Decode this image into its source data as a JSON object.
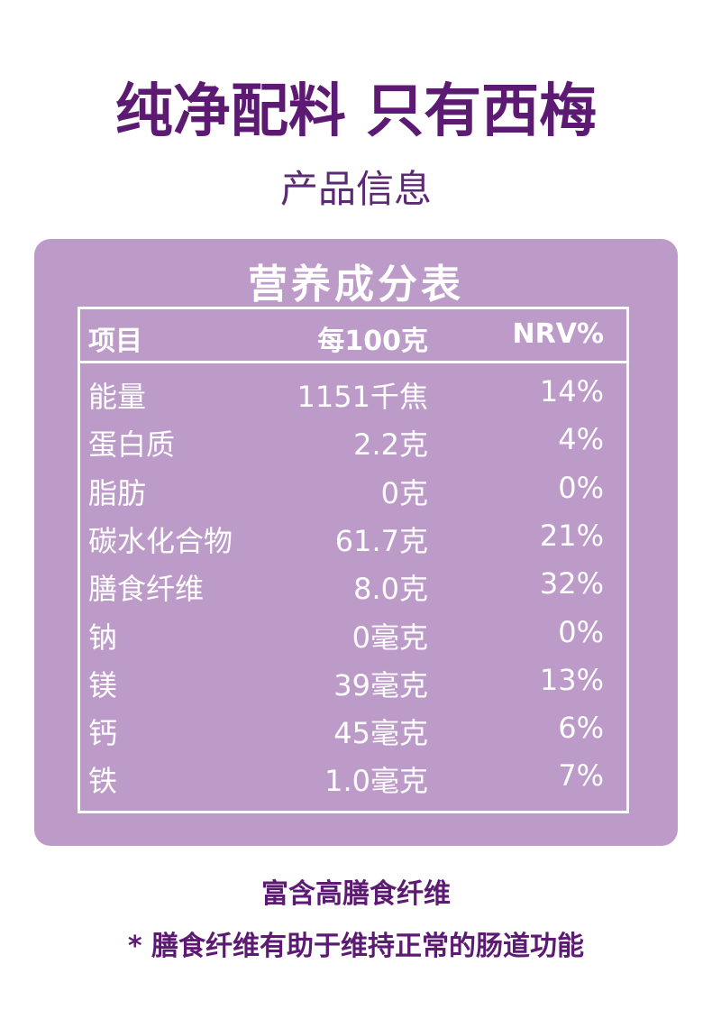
{
  "header": {
    "title": "纯净配料 只有西梅",
    "subtitle": "产品信息"
  },
  "table": {
    "title": "营养成分表",
    "columns": [
      "项目",
      "每100克",
      "NRV%"
    ],
    "rows": [
      [
        "能量",
        "1151千焦",
        "14%"
      ],
      [
        "蛋白质",
        "2.2克",
        "4%"
      ],
      [
        "脂肪",
        "0克",
        "0%"
      ],
      [
        "碳水化合物",
        "61.7克",
        "21%"
      ],
      [
        "膳食纤维",
        "8.0克",
        "32%"
      ],
      [
        "钠",
        "0毫克",
        "0%"
      ],
      [
        "镁",
        "39毫克",
        "13%"
      ],
      [
        "钙",
        "45毫克",
        "6%"
      ],
      [
        "铁",
        "1.0毫克",
        "7%"
      ]
    ]
  },
  "footer": {
    "lines": [
      "富含高膳食纤维",
      "* 膳食纤维有助于维持正常的肠道功能"
    ]
  }
}
